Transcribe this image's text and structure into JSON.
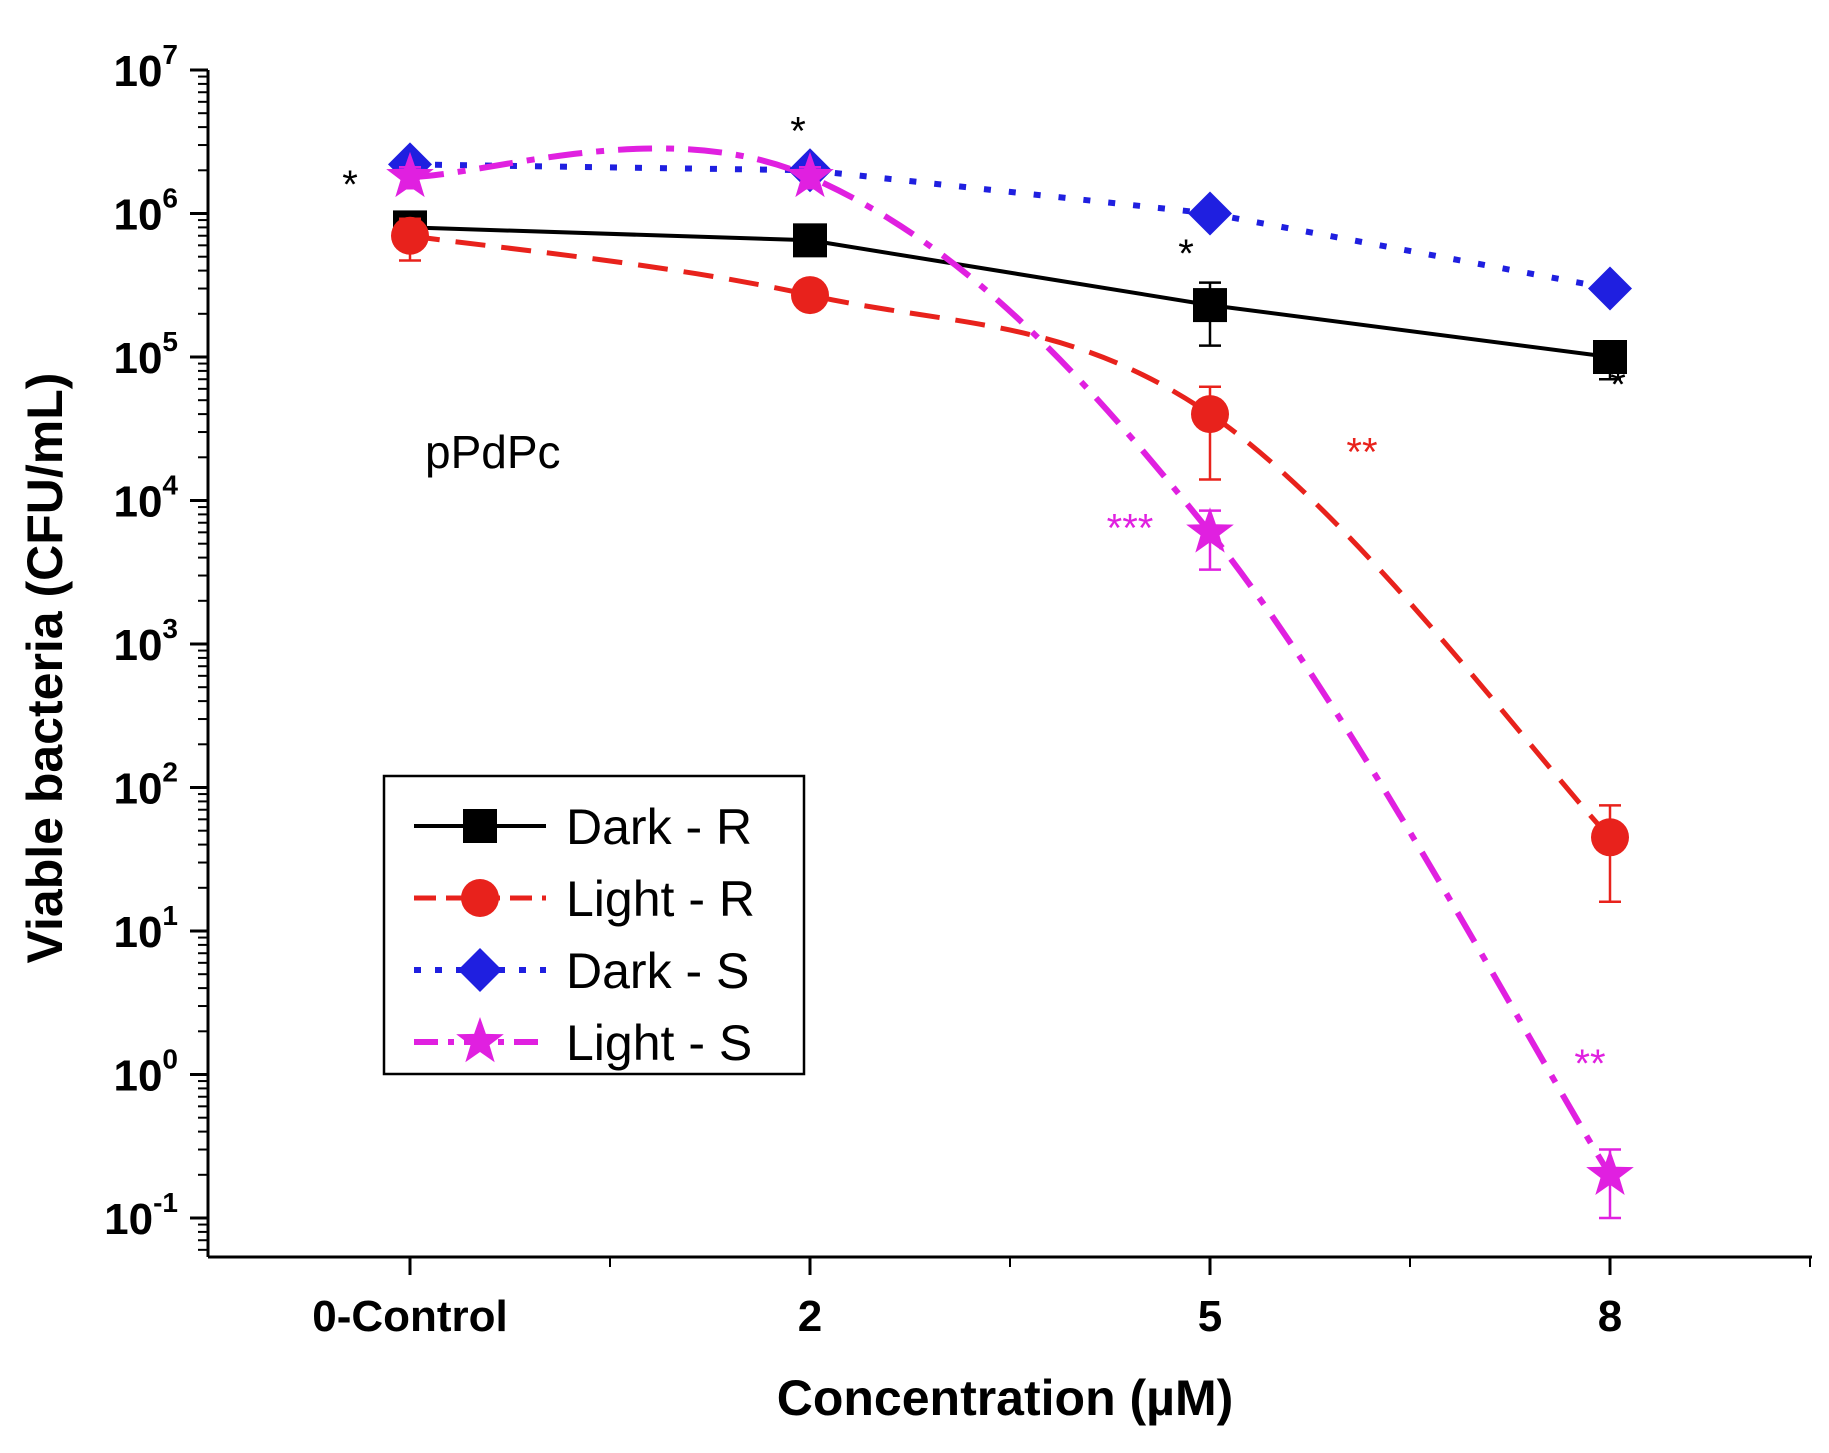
{
  "chart_data": {
    "type": "line",
    "xlabel": "Concentration (µM)",
    "ylabel": "Viable bacteria (CFU/mL)",
    "annotation": "pPdPc",
    "categories": [
      "0-Control",
      "2",
      "5",
      "8"
    ],
    "yscale": "log",
    "ylim": [
      0.05,
      10000000
    ],
    "yticks": [
      {
        "value": 0.1,
        "base": "10",
        "exp": "-1"
      },
      {
        "value": 1,
        "base": "10",
        "exp": "0"
      },
      {
        "value": 10,
        "base": "10",
        "exp": "1"
      },
      {
        "value": 100,
        "base": "10",
        "exp": "2"
      },
      {
        "value": 1000,
        "base": "10",
        "exp": "3"
      },
      {
        "value": 10000,
        "base": "10",
        "exp": "4"
      },
      {
        "value": 100000,
        "base": "10",
        "exp": "5"
      },
      {
        "value": 1000000,
        "base": "10",
        "exp": "6"
      },
      {
        "value": 10000000,
        "base": "10",
        "exp": "7"
      }
    ],
    "legend_position": "lower-left",
    "series": [
      {
        "name": "Dark - R",
        "color": "#000000",
        "marker": "square",
        "line": "solid",
        "curve": "linear",
        "values": [
          800000,
          650000,
          230000,
          100000
        ],
        "err_low": [
          580000,
          560000,
          120000,
          70000
        ],
        "err_high": [
          1000000,
          740000,
          330000,
          120000
        ]
      },
      {
        "name": "Light - R",
        "color": "#e8221c",
        "marker": "circle",
        "line": "dash",
        "curve": "smooth",
        "values": [
          700000,
          270000,
          40000,
          45
        ],
        "err_low": [
          470000,
          220000,
          14000,
          16
        ],
        "err_high": [
          920000,
          330000,
          62000,
          75
        ]
      },
      {
        "name": "Dark - S",
        "color": "#1f1fe0",
        "marker": "diamond",
        "line": "dot",
        "curve": "linear",
        "values": [
          2200000,
          2000000,
          1000000,
          300000
        ],
        "err_low": [
          2200000,
          2000000,
          1000000,
          300000
        ],
        "err_high": [
          2200000,
          2000000,
          1000000,
          300000
        ]
      },
      {
        "name": "Light - S",
        "color": "#e020e0",
        "marker": "star",
        "line": "dashdot",
        "curve": "smooth",
        "values": [
          1800000,
          1800000,
          6000,
          0.2
        ],
        "err_low": [
          1500000,
          1500000,
          3300,
          0.1
        ],
        "err_high": [
          2100000,
          2100000,
          8500,
          0.3
        ]
      }
    ],
    "significance": [
      {
        "text": "*",
        "color": "#000000",
        "category": 0,
        "value": 1600000,
        "dx": -0.15
      },
      {
        "text": "*",
        "color": "#000000",
        "category": 1,
        "value": 3800000,
        "dx": -0.03
      },
      {
        "text": "*",
        "color": "#000000",
        "category": 2,
        "value": 530000,
        "dx": -0.06
      },
      {
        "text": "*",
        "color": "#000000",
        "category": 3,
        "value": 65000,
        "dx": 0.02
      },
      {
        "text": "**",
        "color": "#e8221c",
        "category": 2,
        "value": 22000,
        "dx": 0.38
      },
      {
        "text": "***",
        "color": "#e020e0",
        "category": 2,
        "value": 6500,
        "dx": -0.2
      },
      {
        "text": "**",
        "color": "#e020e0",
        "category": 3,
        "value": 1.2,
        "dx": -0.05
      }
    ]
  }
}
